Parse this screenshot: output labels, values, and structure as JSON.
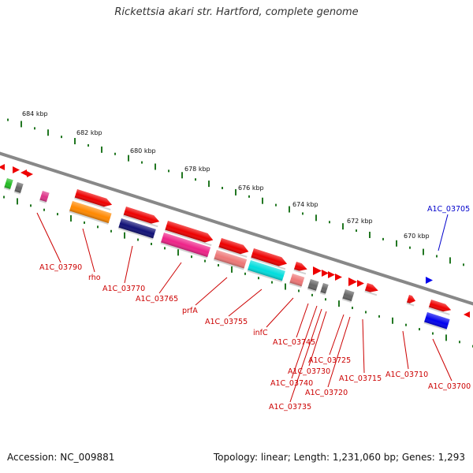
{
  "title": "Rickettsia akari str. Hartford, complete genome",
  "footer": {
    "accession": "Accession: NC_009881",
    "topology": "Topology: linear; Length: 1,231,060 bp; Genes: 1,293"
  },
  "scale": {
    "labels": [
      "684 kbp",
      "682 kbp",
      "680 kbp",
      "678 kbp",
      "676 kbp",
      "674 kbp",
      "672 kbp",
      "670 kbp"
    ]
  },
  "colors": {
    "forward_default": "#ee0000",
    "reverse_highlight": "#0000ee",
    "label_default": "#cc0000",
    "label_highlight": "#0000cc",
    "tick": "#227722",
    "backbone": "#888888"
  },
  "genes": [
    {
      "name": "A1C_03790",
      "color": "#dd3388"
    },
    {
      "name": "rho",
      "color": "#ff8800"
    },
    {
      "name": "A1C_03770",
      "color": "#111177"
    },
    {
      "name": "A1C_03765",
      "color": "#ee2288"
    },
    {
      "name": "prfA",
      "color": "#ee7777"
    },
    {
      "name": "A1C_03755",
      "color": "#00dddd"
    },
    {
      "name": "infC",
      "color": "#ee7777"
    },
    {
      "name": "A1C_03745",
      "color": "#666666"
    },
    {
      "name": "A1C_03740",
      "color": "#666666"
    },
    {
      "name": "A1C_03735",
      "color": "#ee0000"
    },
    {
      "name": "A1C_03730",
      "color": "#ee0000"
    },
    {
      "name": "A1C_03725",
      "color": "#666666"
    },
    {
      "name": "A1C_03720",
      "color": "#ee0000"
    },
    {
      "name": "A1C_03715",
      "color": "#ee0000"
    },
    {
      "name": "A1C_03710",
      "color": "#ee0000"
    },
    {
      "name": "A1C_03705",
      "color": "#0000ee"
    },
    {
      "name": "A1C_03700",
      "color": "#0000ee"
    }
  ]
}
